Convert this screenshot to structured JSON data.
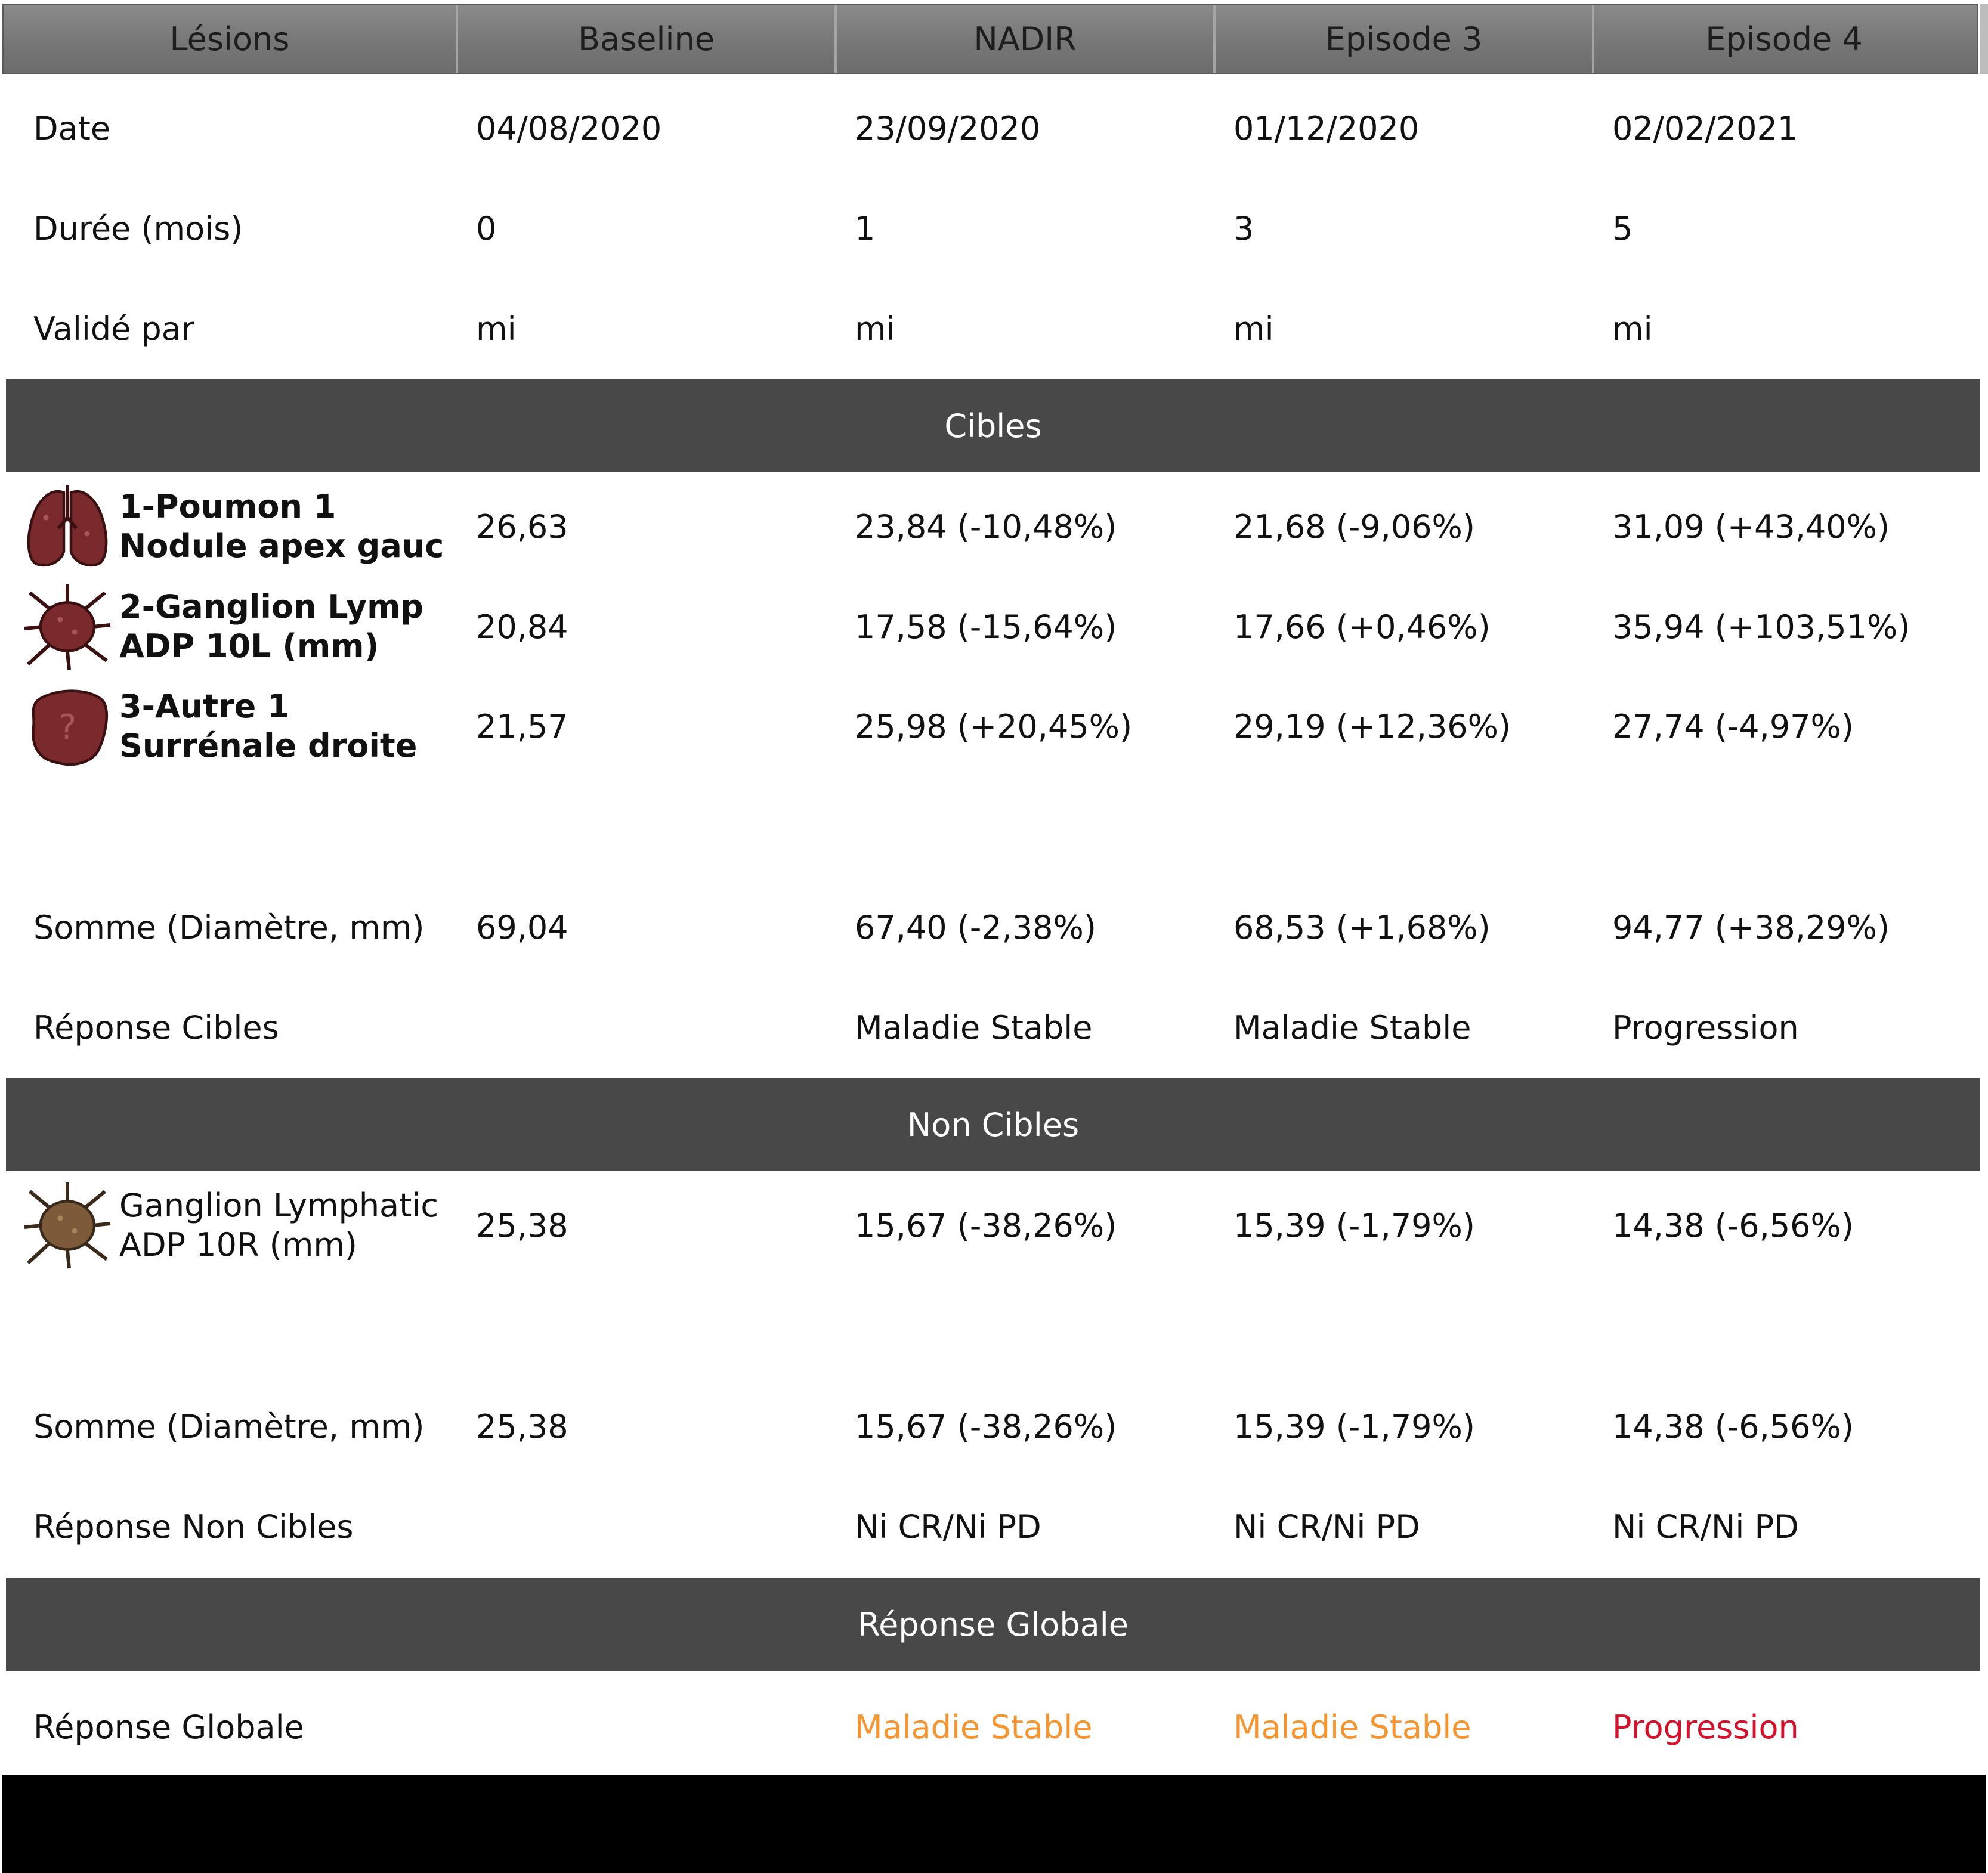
{
  "columns": [
    "Lésions",
    "Baseline",
    "NADIR",
    "Episode 3",
    "Episode 4"
  ],
  "info_rows": [
    {
      "label": "Date",
      "values": [
        "04/08/2020",
        "23/09/2020",
        "01/12/2020",
        "02/02/2021"
      ]
    },
    {
      "label": "Durée (mois)",
      "values": [
        "0",
        "1",
        "3",
        "5"
      ]
    },
    {
      "label": "Validé par",
      "values": [
        "mi",
        "mi",
        "mi",
        "mi"
      ]
    }
  ],
  "cibles": {
    "title": "Cibles",
    "lesions": [
      {
        "icon": "lung-icon",
        "name_line1": "1-Poumon 1",
        "name_line2": "Nodule apex gauc",
        "values": [
          "26,63",
          "23,84 (-10,48%)",
          "21,68 (-9,06%)",
          "31,09 (+43,40%)"
        ]
      },
      {
        "icon": "lymph-node-icon",
        "name_line1": "2-Ganglion Lymp",
        "name_line2": "ADP 10L (mm)",
        "values": [
          "20,84",
          "17,58 (-15,64%)",
          "17,66 (+0,46%)",
          "35,94 (+103,51%)"
        ]
      },
      {
        "icon": "unknown-organ-icon",
        "name_line1": "3-Autre 1",
        "name_line2": "Surrénale droite",
        "values": [
          "21,57",
          "25,98 (+20,45%)",
          "29,19 (+12,36%)",
          "27,74 (-4,97%)"
        ]
      }
    ],
    "sum": {
      "label": "Somme (Diamètre, mm)",
      "values": [
        "69,04",
        "67,40 (-2,38%)",
        "68,53 (+1,68%)",
        "94,77 (+38,29%)"
      ]
    },
    "response": {
      "label": "Réponse Cibles",
      "values": [
        "",
        "Maladie Stable",
        "Maladie Stable",
        "Progression"
      ]
    }
  },
  "non_cibles": {
    "title": "Non Cibles",
    "lesions": [
      {
        "icon": "lymph-node-icon",
        "name_line1": "Ganglion Lymphatic",
        "name_line2": "ADP 10R (mm)",
        "values": [
          "25,38",
          "15,67 (-38,26%)",
          "15,39 (-1,79%)",
          "14,38 (-6,56%)"
        ]
      }
    ],
    "sum": {
      "label": "Somme (Diamètre, mm)",
      "values": [
        "25,38",
        "15,67 (-38,26%)",
        "15,39 (-1,79%)",
        "14,38 (-6,56%)"
      ]
    },
    "response": {
      "label": "Réponse Non Cibles",
      "values": [
        "",
        "Ni CR/Ni PD",
        "Ni CR/Ni PD",
        "Ni CR/Ni PD"
      ]
    }
  },
  "globale": {
    "title": "Réponse Globale",
    "label": "Réponse Globale",
    "values": [
      "",
      "Maladie Stable",
      "Maladie Stable",
      "Progression"
    ]
  },
  "colors": {
    "stable": "#f7942e",
    "progression": "#d4102b",
    "section_bg": "#484848",
    "icon_target": "#7a2a2c",
    "icon_nontarget": "#7c5a3a"
  }
}
